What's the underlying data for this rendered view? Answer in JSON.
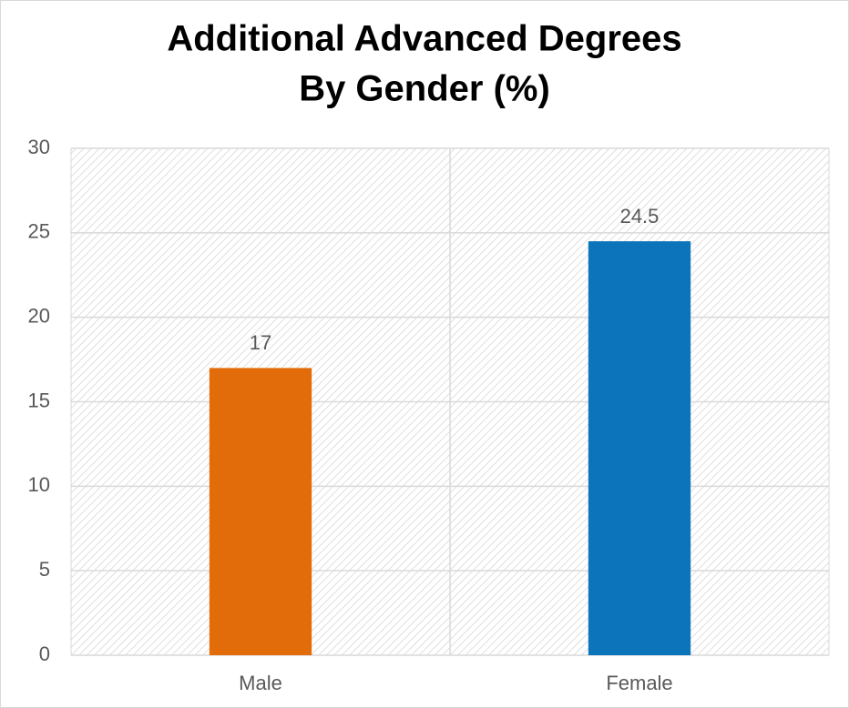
{
  "chart_data": {
    "type": "bar",
    "title": [
      "Additional Advanced Degrees",
      "By Gender (%)"
    ],
    "categories": [
      "Male",
      "Female"
    ],
    "values": [
      17,
      24.5
    ],
    "colors": [
      "#e36c0a",
      "#0b74bb"
    ],
    "ylim": [
      0,
      30
    ],
    "yticks": [
      0,
      5,
      10,
      15,
      20,
      25,
      30
    ],
    "grid": true
  }
}
